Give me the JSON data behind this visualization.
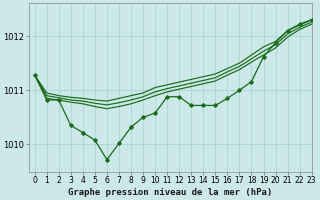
{
  "xlabel": "Graphe pression niveau de la mer (hPa)",
  "bg_color": "#cce8e8",
  "grid_color": "#b0d8d8",
  "line_color": "#1a6b1a",
  "xlim": [
    -0.5,
    23
  ],
  "ylim": [
    1009.5,
    1012.6
  ],
  "yticks": [
    1010,
    1011,
    1012
  ],
  "xticks": [
    0,
    1,
    2,
    3,
    4,
    5,
    6,
    7,
    8,
    9,
    10,
    11,
    12,
    13,
    14,
    15,
    16,
    17,
    18,
    19,
    20,
    21,
    22,
    23
  ],
  "smooth_upper": [
    1011.28,
    1010.95,
    1010.9,
    1010.87,
    1010.85,
    1010.82,
    1010.8,
    1010.85,
    1010.9,
    1010.95,
    1011.05,
    1011.1,
    1011.15,
    1011.2,
    1011.25,
    1011.3,
    1011.4,
    1011.5,
    1011.65,
    1011.8,
    1011.9,
    1012.1,
    1012.2,
    1012.3
  ],
  "smooth_lower": [
    1011.28,
    1010.85,
    1010.82,
    1010.78,
    1010.75,
    1010.7,
    1010.66,
    1010.7,
    1010.75,
    1010.82,
    1010.9,
    1010.97,
    1011.02,
    1011.07,
    1011.12,
    1011.17,
    1011.28,
    1011.38,
    1011.52,
    1011.65,
    1011.78,
    1011.98,
    1012.12,
    1012.22
  ],
  "smooth_mid": [
    1011.28,
    1010.9,
    1010.86,
    1010.82,
    1010.8,
    1010.76,
    1010.73,
    1010.77,
    1010.82,
    1010.88,
    1010.97,
    1011.03,
    1011.08,
    1011.13,
    1011.18,
    1011.23,
    1011.34,
    1011.44,
    1011.58,
    1011.72,
    1011.84,
    1012.04,
    1012.16,
    1012.26
  ],
  "detail": [
    1011.28,
    1010.82,
    1010.82,
    1010.35,
    1010.22,
    1010.08,
    1009.72,
    1010.02,
    1010.32,
    1010.5,
    1010.58,
    1010.88,
    1010.88,
    1010.72,
    1010.72,
    1010.72,
    1010.85,
    1011.0,
    1011.16,
    1011.62,
    1011.88,
    1012.1,
    1012.22,
    1012.3
  ]
}
